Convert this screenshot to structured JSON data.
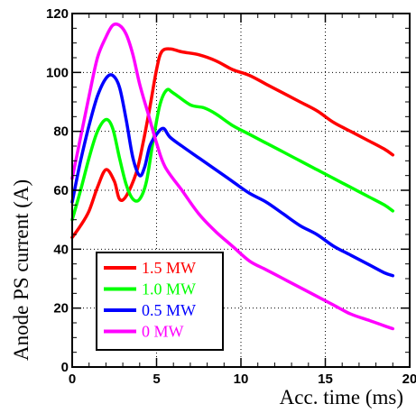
{
  "chart_data": {
    "type": "line",
    "title": "",
    "xlabel": "Acc. time (ms)",
    "ylabel": "Anode PS current (A)",
    "xlim": [
      0,
      20
    ],
    "ylim": [
      0,
      120
    ],
    "xticks": [
      0,
      5,
      10,
      15,
      20
    ],
    "yticks": [
      0,
      20,
      40,
      60,
      80,
      100,
      120
    ],
    "grid": true,
    "legend_position": "bottom-left",
    "series": [
      {
        "name": "1.5 MW",
        "color": "#ff0000",
        "points": [
          [
            0,
            44
          ],
          [
            0.5,
            48
          ],
          [
            1,
            53
          ],
          [
            1.5,
            61
          ],
          [
            2,
            67
          ],
          [
            2.5,
            63
          ],
          [
            2.8,
            57
          ],
          [
            3.2,
            58
          ],
          [
            3.8,
            66
          ],
          [
            4.2,
            76
          ],
          [
            4.6,
            88
          ],
          [
            5,
            101
          ],
          [
            5.3,
            107
          ],
          [
            5.8,
            108
          ],
          [
            6.5,
            107
          ],
          [
            7.5,
            106
          ],
          [
            8.5,
            104
          ],
          [
            9.5,
            101
          ],
          [
            10.5,
            99
          ],
          [
            11.5,
            96
          ],
          [
            12.5,
            93
          ],
          [
            13.5,
            90
          ],
          [
            14.5,
            87
          ],
          [
            15.5,
            83
          ],
          [
            16.5,
            80
          ],
          [
            17.5,
            77
          ],
          [
            18.5,
            74
          ],
          [
            19,
            72
          ]
        ]
      },
      {
        "name": "1.0 MW",
        "color": "#00ff00",
        "points": [
          [
            0,
            50
          ],
          [
            0.5,
            60
          ],
          [
            1,
            71
          ],
          [
            1.5,
            80
          ],
          [
            2,
            84
          ],
          [
            2.4,
            81
          ],
          [
            2.8,
            71
          ],
          [
            3.2,
            62
          ],
          [
            3.6,
            57
          ],
          [
            4,
            57
          ],
          [
            4.4,
            63
          ],
          [
            4.8,
            77
          ],
          [
            5.2,
            89
          ],
          [
            5.6,
            94
          ],
          [
            6,
            93
          ],
          [
            7,
            89
          ],
          [
            7.8,
            88
          ],
          [
            8.5,
            86
          ],
          [
            9.5,
            82
          ],
          [
            10.5,
            79
          ],
          [
            11.5,
            76
          ],
          [
            12.5,
            73
          ],
          [
            13.5,
            70
          ],
          [
            14.5,
            67
          ],
          [
            15.5,
            64
          ],
          [
            16.5,
            61
          ],
          [
            17.5,
            58
          ],
          [
            18.5,
            55
          ],
          [
            19,
            53
          ]
        ]
      },
      {
        "name": "0.5 MW",
        "color": "#0000ff",
        "points": [
          [
            0,
            56
          ],
          [
            0.5,
            70
          ],
          [
            1,
            82
          ],
          [
            1.5,
            92
          ],
          [
            2,
            98
          ],
          [
            2.4,
            99
          ],
          [
            2.8,
            95
          ],
          [
            3.2,
            84
          ],
          [
            3.6,
            71
          ],
          [
            4,
            65
          ],
          [
            4.3,
            68
          ],
          [
            4.6,
            75
          ],
          [
            5,
            79
          ],
          [
            5.4,
            81
          ],
          [
            5.8,
            78
          ],
          [
            6.5,
            75
          ],
          [
            7.5,
            71
          ],
          [
            8.5,
            67
          ],
          [
            9.5,
            63
          ],
          [
            10.5,
            59
          ],
          [
            11.5,
            56
          ],
          [
            12.5,
            52
          ],
          [
            13.5,
            48
          ],
          [
            14.5,
            45
          ],
          [
            15.5,
            41
          ],
          [
            16.5,
            38
          ],
          [
            17.5,
            35
          ],
          [
            18.5,
            32
          ],
          [
            19,
            31
          ]
        ]
      },
      {
        "name": "0 MW",
        "color": "#ff00ff",
        "points": [
          [
            0,
            64
          ],
          [
            0.5,
            78
          ],
          [
            1,
            92
          ],
          [
            1.5,
            105
          ],
          [
            2,
            112
          ],
          [
            2.4,
            116
          ],
          [
            2.8,
            116
          ],
          [
            3.2,
            113
          ],
          [
            3.6,
            106
          ],
          [
            4,
            96
          ],
          [
            4.5,
            86
          ],
          [
            5,
            76
          ],
          [
            5.5,
            68
          ],
          [
            6.5,
            60
          ],
          [
            7.5,
            52
          ],
          [
            8.5,
            46
          ],
          [
            9.5,
            41
          ],
          [
            10.5,
            36
          ],
          [
            11.5,
            33
          ],
          [
            12.5,
            30
          ],
          [
            13.5,
            27
          ],
          [
            14.5,
            24
          ],
          [
            15.5,
            21
          ],
          [
            16.5,
            18
          ],
          [
            17.5,
            16
          ],
          [
            18.5,
            14
          ],
          [
            19,
            13
          ]
        ]
      }
    ]
  }
}
